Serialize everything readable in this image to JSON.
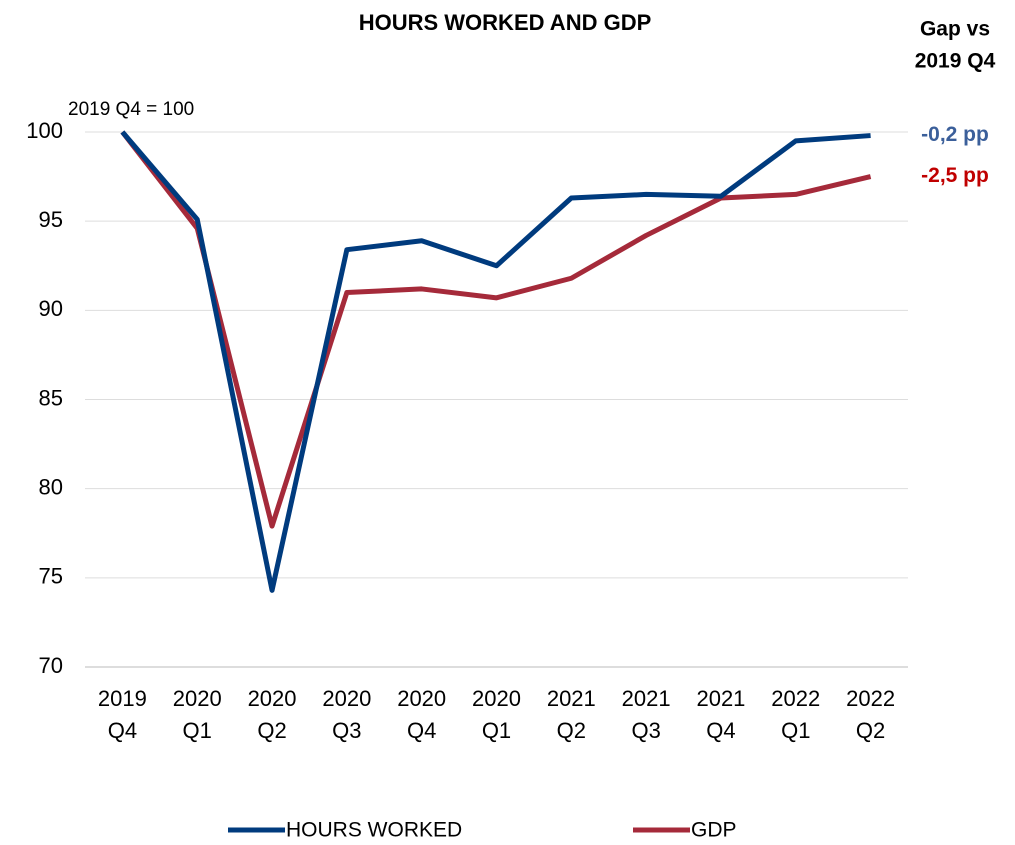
{
  "chart_data": {
    "type": "line",
    "title": "HOURS WORKED AND GDP",
    "unit_note": "2019 Q4 = 100",
    "gap_header": [
      "Gap vs",
      "2019 Q4"
    ],
    "categories": [
      "2019 Q4",
      "2020 Q1",
      "2020 Q2",
      "2020 Q3",
      "2020 Q4",
      "2020 Q1",
      "2021 Q2",
      "2021 Q3",
      "2021 Q4",
      "2022 Q1",
      "2022 Q2"
    ],
    "series": [
      {
        "name": "HOURS WORKED",
        "color": "#003b7e",
        "values": [
          100,
          95.1,
          74.3,
          93.4,
          93.9,
          92.5,
          96.3,
          96.5,
          96.4,
          99.5,
          99.8
        ],
        "gap_label": "-0,2 pp",
        "gap_color": "#3b5f9a"
      },
      {
        "name": "GDP",
        "color": "#a52a3a",
        "values": [
          100,
          94.6,
          77.9,
          91.0,
          91.2,
          90.7,
          91.8,
          94.2,
          96.3,
          96.5,
          97.5
        ],
        "gap_label": "-2,5 pp",
        "gap_color": "#c00000"
      }
    ],
    "ylim": [
      70,
      100
    ],
    "yticks": [
      70,
      75,
      80,
      85,
      90,
      95,
      100
    ],
    "grid": true,
    "legend": "bottom"
  }
}
